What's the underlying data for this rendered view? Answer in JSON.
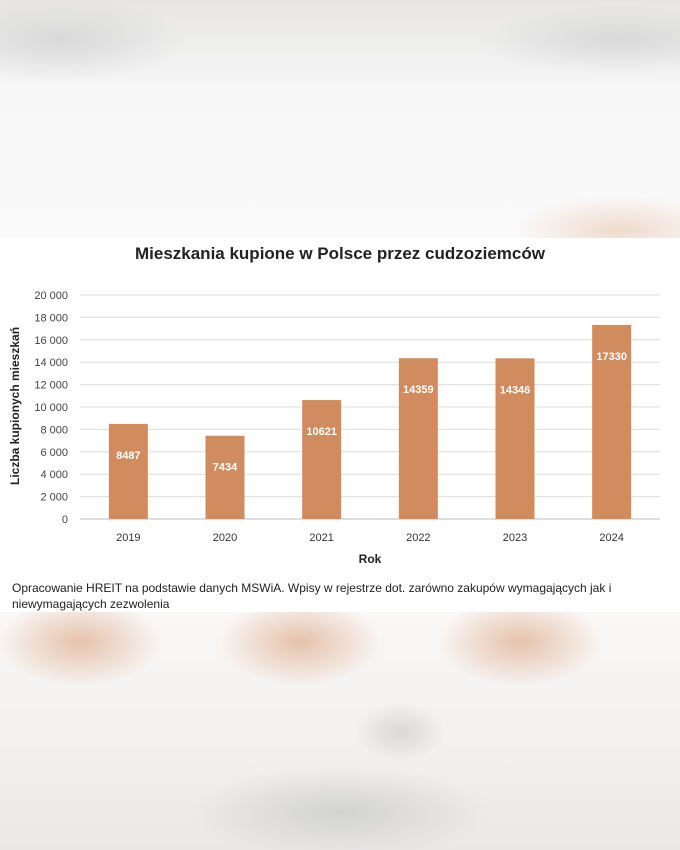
{
  "chart_data": {
    "type": "bar",
    "title": "Mieszkania kupione w Polsce przez cudzoziemców",
    "xlabel": "Rok",
    "ylabel": "Liczba kupionych mieszkań",
    "categories": [
      "2019",
      "2020",
      "2021",
      "2022",
      "2023",
      "2024"
    ],
    "values": [
      8487,
      7434,
      10621,
      14359,
      14346,
      17330
    ],
    "data_labels": [
      "8487",
      "7434",
      "10621",
      "14359",
      "14346",
      "17330"
    ],
    "ylim": [
      0,
      20000
    ],
    "yticks": [
      0,
      2000,
      4000,
      6000,
      8000,
      10000,
      12000,
      14000,
      16000,
      18000,
      20000
    ],
    "ytick_labels": [
      "0",
      "2 000",
      "4 000",
      "6 000",
      "8 000",
      "10 000",
      "12 000",
      "14 000",
      "16 000",
      "18 000",
      "20 000"
    ],
    "grid": true,
    "legend": "none",
    "bar_color": "#d08b5e"
  },
  "caption": "Opracowanie HREIT na podstawie danych MSWiA. Wpisy w rejestrze dot. zarówno zakupów wymagających jak i niewymagających zezwolenia"
}
